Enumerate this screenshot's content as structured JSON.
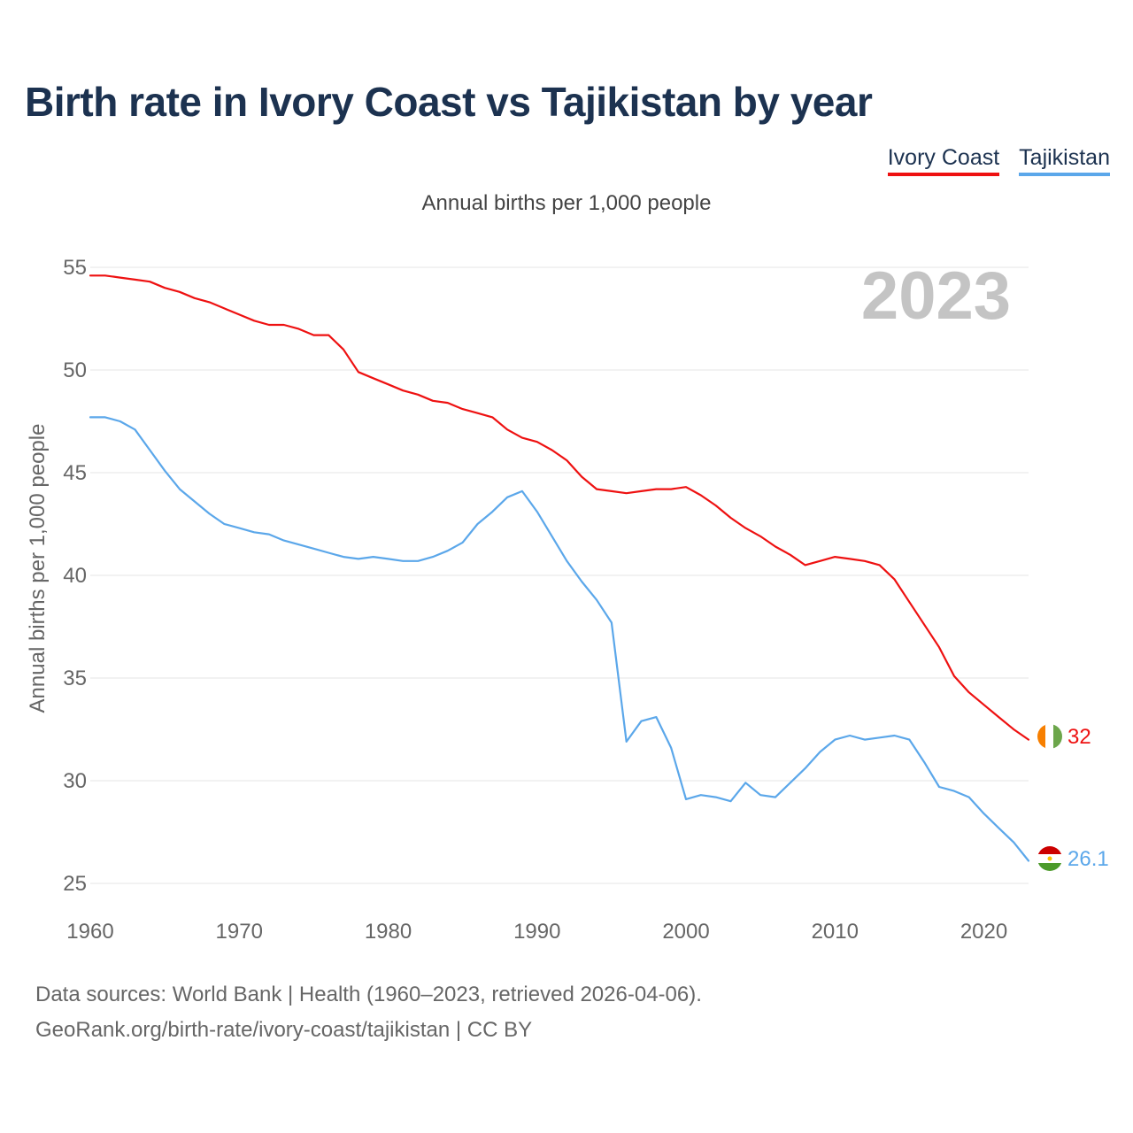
{
  "title": "Birth rate in Ivory Coast vs Tajikistan by year",
  "subtitle": "Annual births per 1,000 people",
  "legend": [
    {
      "label": "Ivory Coast",
      "color": "#ee1111"
    },
    {
      "label": "Tajikistan",
      "color": "#5ba7ea"
    }
  ],
  "sources": {
    "line1": "Data sources: World Bank | Health (1960–2023, retrieved 2026-04-06).",
    "line2": "GeoRank.org/birth-rate/ivory-coast/tajikistan | CC BY"
  },
  "chart_data": {
    "type": "line",
    "title": "Birth rate in Ivory Coast vs Tajikistan by year",
    "subtitle": "Annual births per 1,000 people",
    "xlabel": "",
    "ylabel": "Annual births per 1,000 people",
    "year_label": "2023",
    "xlim": [
      1960,
      2023
    ],
    "ylim": [
      25,
      55
    ],
    "xticks": [
      1960,
      1970,
      1980,
      1990,
      2000,
      2010,
      2020
    ],
    "yticks": [
      25,
      30,
      35,
      40,
      45,
      50,
      55
    ],
    "grid": true,
    "legend_position": "top-right",
    "x": [
      1960,
      1961,
      1962,
      1963,
      1964,
      1965,
      1966,
      1967,
      1968,
      1969,
      1970,
      1971,
      1972,
      1973,
      1974,
      1975,
      1976,
      1977,
      1978,
      1979,
      1980,
      1981,
      1982,
      1983,
      1984,
      1985,
      1986,
      1987,
      1988,
      1989,
      1990,
      1991,
      1992,
      1993,
      1994,
      1995,
      1996,
      1997,
      1998,
      1999,
      2000,
      2001,
      2002,
      2003,
      2004,
      2005,
      2006,
      2007,
      2008,
      2009,
      2010,
      2011,
      2012,
      2013,
      2014,
      2015,
      2016,
      2017,
      2018,
      2019,
      2020,
      2021,
      2022,
      2023
    ],
    "series": [
      {
        "name": "Ivory Coast",
        "color": "#ee1111",
        "end_label": "32",
        "values": [
          54.6,
          54.6,
          54.5,
          54.4,
          54.3,
          54.0,
          53.8,
          53.5,
          53.3,
          53.0,
          52.7,
          52.4,
          52.2,
          52.2,
          52.0,
          51.7,
          51.7,
          51.0,
          49.9,
          49.6,
          49.3,
          49.0,
          48.8,
          48.5,
          48.4,
          48.1,
          47.9,
          47.7,
          47.1,
          46.7,
          46.5,
          46.1,
          45.6,
          44.8,
          44.2,
          44.1,
          44.0,
          44.1,
          44.2,
          44.2,
          44.3,
          43.9,
          43.4,
          42.8,
          42.3,
          41.9,
          41.4,
          41.0,
          40.5,
          40.7,
          40.9,
          40.8,
          40.7,
          40.5,
          39.8,
          38.7,
          37.6,
          36.5,
          35.1,
          34.3,
          33.7,
          33.1,
          32.5,
          32.0
        ]
      },
      {
        "name": "Tajikistan",
        "color": "#5ba7ea",
        "end_label": "26.1",
        "values": [
          47.7,
          47.7,
          47.5,
          47.1,
          46.1,
          45.1,
          44.2,
          43.6,
          43.0,
          42.5,
          42.3,
          42.1,
          42.0,
          41.7,
          41.5,
          41.3,
          41.1,
          40.9,
          40.8,
          40.9,
          40.8,
          40.7,
          40.7,
          40.9,
          41.2,
          41.6,
          42.5,
          43.1,
          43.8,
          44.1,
          43.1,
          41.9,
          40.7,
          39.7,
          38.8,
          37.7,
          31.9,
          32.9,
          33.1,
          31.6,
          29.1,
          29.3,
          29.2,
          29.0,
          29.9,
          29.3,
          29.2,
          29.9,
          30.6,
          31.4,
          32.0,
          32.2,
          32.0,
          32.1,
          32.2,
          32.0,
          30.9,
          29.7,
          29.5,
          29.2,
          28.4,
          27.7,
          27.0,
          26.1
        ]
      }
    ]
  }
}
